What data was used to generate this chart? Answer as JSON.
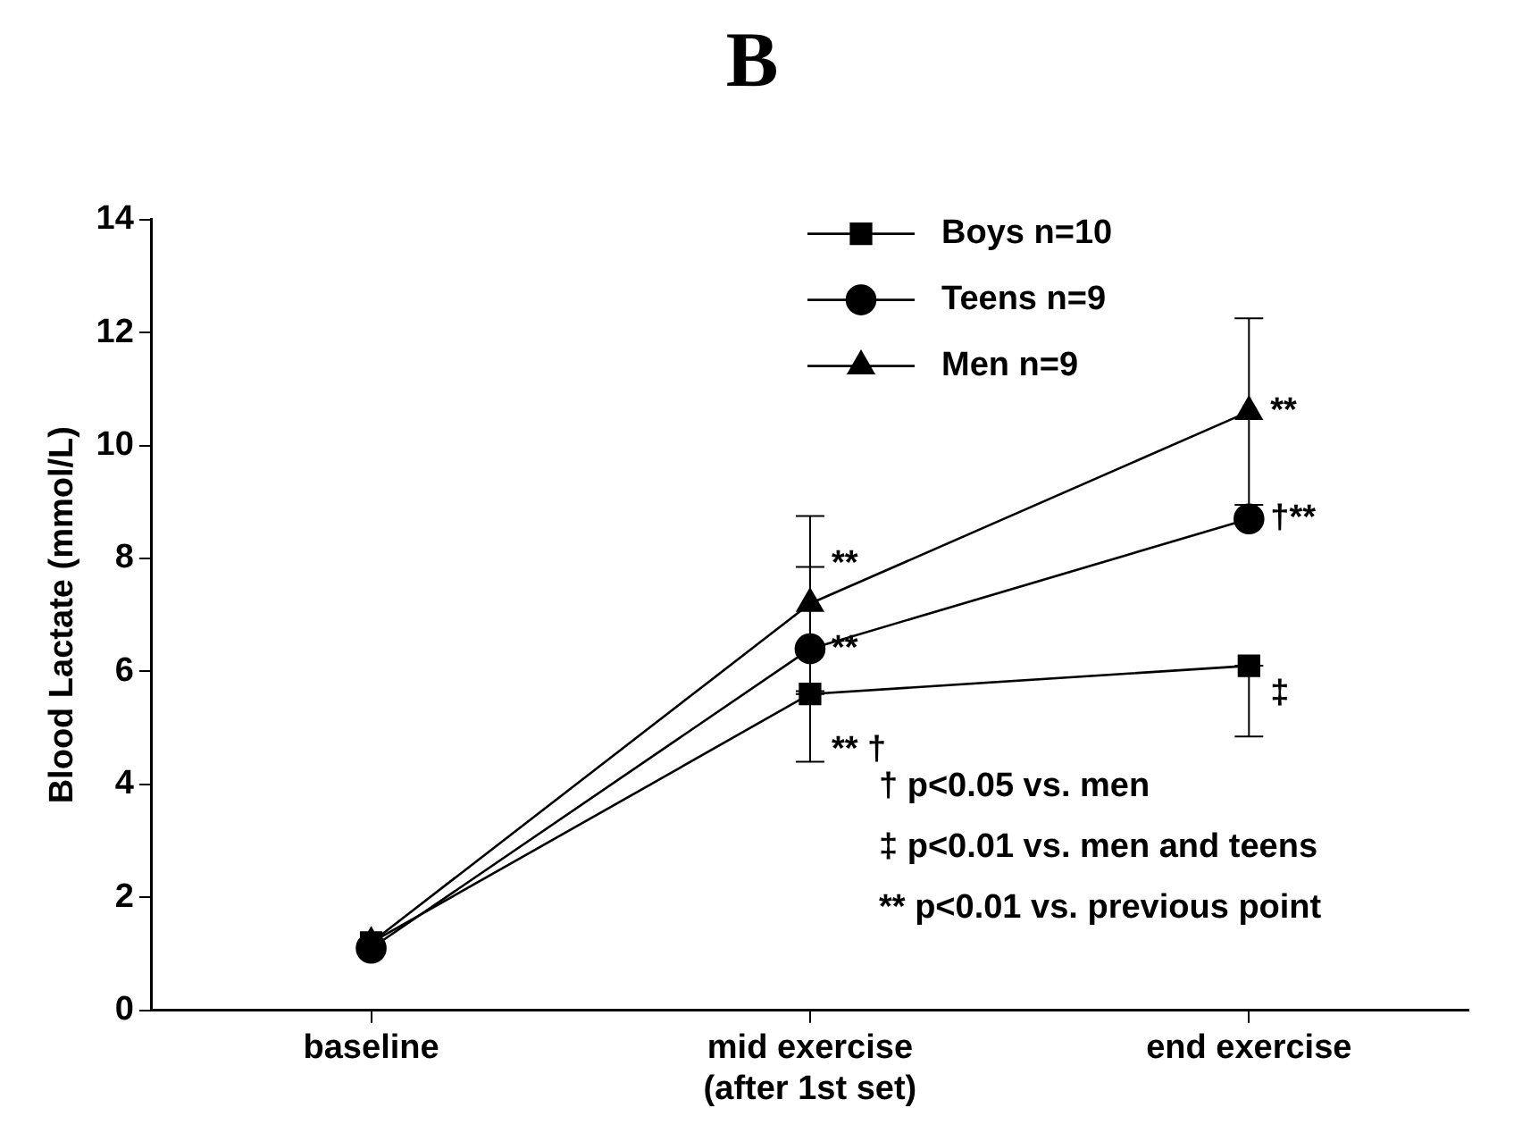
{
  "chart_data": {
    "type": "line",
    "title": "B",
    "ylabel": "Blood Lactate (mmol/L)",
    "categories": [
      "baseline",
      "mid exercise\n(after 1st set)",
      "end exercise"
    ],
    "ylim": [
      0,
      14
    ],
    "yticks": [
      0,
      2,
      4,
      6,
      8,
      10,
      12,
      14
    ],
    "grid": false,
    "legend": "top right",
    "line_style": "solid",
    "series": [
      {
        "name": "Boys n=10",
        "color": "#000000",
        "marker": "square",
        "values": [
          1.2,
          5.6,
          6.1
        ],
        "errors": [
          null,
          [
            4.4,
            5.6
          ],
          [
            4.85,
            6.1
          ]
        ]
      },
      {
        "name": "Teens n=9",
        "color": "#000000",
        "marker": "circle",
        "values": [
          1.1,
          6.4,
          8.7
        ],
        "errors": [
          null,
          [
            6.4,
            7.85
          ],
          null
        ]
      },
      {
        "name": "Men n=9",
        "color": "#000000",
        "marker": "triangle",
        "values": [
          1.2,
          7.2,
          10.6
        ],
        "errors": [
          null,
          1.55,
          [
            8.95,
            12.25
          ]
        ]
      }
    ],
    "annotations": [
      {
        "text": "**",
        "x": "mid exercise\n(after 1st set)",
        "y": 7.9
      },
      {
        "text": "**",
        "x": "mid exercise\n(after 1st set)",
        "y": 6.4
      },
      {
        "text": "** †",
        "x": "mid exercise\n(after 1st set)",
        "y": 4.6
      },
      {
        "text": "**",
        "x": "end exercise",
        "y": 10.6
      },
      {
        "text": "†**",
        "x": "end exercise",
        "y": 8.7
      },
      {
        "text": "‡",
        "x": "end exercise",
        "y": 5.6
      },
      "† p<0.05 vs. men",
      "‡ p<0.01 vs. men and teens",
      "** p<0.01 vs. previous point"
    ]
  }
}
